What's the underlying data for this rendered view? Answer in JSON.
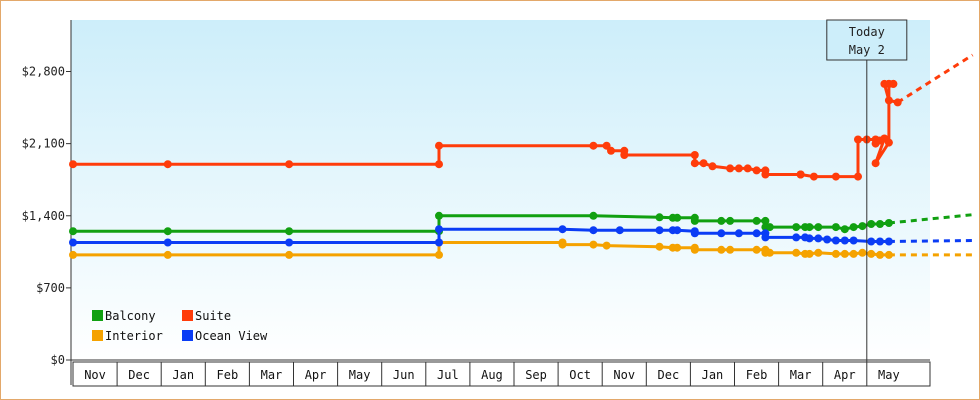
{
  "chart_data": {
    "type": "line",
    "title": "",
    "xlabel": "",
    "ylabel": "",
    "ylim": [
      0,
      3300
    ],
    "y_ticks": [
      {
        "value": 0,
        "label": "$0"
      },
      {
        "value": 700,
        "label": "$700"
      },
      {
        "value": 1400,
        "label": "$1,400"
      },
      {
        "value": 2100,
        "label": "$2,100"
      },
      {
        "value": 2800,
        "label": "$2,800"
      }
    ],
    "months": [
      "Nov",
      "Dec",
      "Jan",
      "Feb",
      "Mar",
      "Apr",
      "May",
      "Jun",
      "Jul",
      "Aug",
      "Sep",
      "Oct",
      "Nov",
      "Dec",
      "Jan",
      "Feb",
      "Mar",
      "Apr",
      "May"
    ],
    "today_label": [
      "Today",
      "May 2"
    ],
    "today_month_index": 18,
    "legend": {
      "position": "bottom-left"
    },
    "grid": false,
    "colors": {
      "Balcony": "#11a011",
      "Suite": "#ff3c0a",
      "Interior": "#f5a200",
      "Ocean View": "#0a3cf5",
      "plot_bg_top": "#cdeefa",
      "plot_bg_bottom": "#ffffff",
      "axis": "#333333",
      "frame": "#e3a86a"
    },
    "series": [
      {
        "name": "Balcony",
        "points": [
          [
            0,
            1250
          ],
          [
            2.15,
            1250
          ],
          [
            4.9,
            1250
          ],
          [
            8.3,
            1250
          ],
          [
            8.3,
            1400
          ],
          [
            11.8,
            1400
          ],
          [
            13.3,
            1385
          ],
          [
            13.6,
            1380
          ],
          [
            13.7,
            1380
          ],
          [
            14.1,
            1380
          ],
          [
            14.1,
            1350
          ],
          [
            14.7,
            1350
          ],
          [
            14.9,
            1350
          ],
          [
            15.5,
            1350
          ],
          [
            15.7,
            1350
          ],
          [
            15.7,
            1290
          ],
          [
            15.8,
            1290
          ],
          [
            16.4,
            1290
          ],
          [
            16.6,
            1290
          ],
          [
            16.7,
            1290
          ],
          [
            16.9,
            1290
          ],
          [
            17.3,
            1290
          ],
          [
            17.5,
            1270
          ],
          [
            17.7,
            1290
          ],
          [
            17.9,
            1300
          ],
          [
            18.1,
            1320
          ],
          [
            18.3,
            1320
          ],
          [
            18.5,
            1330
          ]
        ],
        "forecast": [
          [
            18.5,
            1330
          ],
          [
            20.4,
            1410
          ]
        ]
      },
      {
        "name": "Suite",
        "points": [
          [
            0,
            1900
          ],
          [
            2.15,
            1900
          ],
          [
            4.9,
            1900
          ],
          [
            8.3,
            1900
          ],
          [
            8.3,
            2080
          ],
          [
            11.8,
            2080
          ],
          [
            12.1,
            2080
          ],
          [
            12.2,
            2030
          ],
          [
            12.5,
            2030
          ],
          [
            12.5,
            1990
          ],
          [
            14.1,
            1990
          ],
          [
            14.1,
            1910
          ],
          [
            14.3,
            1910
          ],
          [
            14.5,
            1880
          ],
          [
            14.9,
            1860
          ],
          [
            15.1,
            1860
          ],
          [
            15.3,
            1860
          ],
          [
            15.5,
            1840
          ],
          [
            15.7,
            1840
          ],
          [
            15.7,
            1800
          ],
          [
            16.5,
            1800
          ],
          [
            16.5,
            1800
          ],
          [
            16.8,
            1780
          ],
          [
            17.3,
            1780
          ],
          [
            17.8,
            1780
          ],
          [
            17.8,
            2140
          ],
          [
            18.0,
            2140
          ],
          [
            18.2,
            2140
          ],
          [
            18.2,
            2100
          ],
          [
            18.3,
            2130
          ],
          [
            18.4,
            2150
          ],
          [
            18.2,
            1910
          ],
          [
            18.5,
            2110
          ],
          [
            18.5,
            2680
          ],
          [
            18.6,
            2680
          ],
          [
            18.6,
            2680
          ],
          [
            18.5,
            2680
          ],
          [
            18.4,
            2680
          ],
          [
            18.5,
            2520
          ],
          [
            18.7,
            2500
          ]
        ],
        "forecast": [
          [
            18.7,
            2500
          ],
          [
            20.4,
            2960
          ]
        ]
      },
      {
        "name": "Interior",
        "points": [
          [
            0,
            1020
          ],
          [
            2.15,
            1020
          ],
          [
            4.9,
            1020
          ],
          [
            8.3,
            1020
          ],
          [
            8.3,
            1140
          ],
          [
            11.1,
            1140
          ],
          [
            11.1,
            1120
          ],
          [
            11.8,
            1120
          ],
          [
            12.1,
            1110
          ],
          [
            13.3,
            1100
          ],
          [
            13.6,
            1090
          ],
          [
            13.7,
            1090
          ],
          [
            14.1,
            1090
          ],
          [
            14.1,
            1070
          ],
          [
            14.7,
            1070
          ],
          [
            14.9,
            1070
          ],
          [
            15.5,
            1070
          ],
          [
            15.7,
            1070
          ],
          [
            15.7,
            1040
          ],
          [
            15.8,
            1040
          ],
          [
            16.4,
            1040
          ],
          [
            16.6,
            1030
          ],
          [
            16.7,
            1030
          ],
          [
            16.9,
            1040
          ],
          [
            17.3,
            1030
          ],
          [
            17.5,
            1030
          ],
          [
            17.7,
            1030
          ],
          [
            17.9,
            1040
          ],
          [
            18.1,
            1030
          ],
          [
            18.3,
            1020
          ],
          [
            18.5,
            1020
          ]
        ],
        "forecast": [
          [
            18.5,
            1020
          ],
          [
            20.4,
            1020
          ]
        ]
      },
      {
        "name": "Ocean View",
        "points": [
          [
            0,
            1140
          ],
          [
            2.15,
            1140
          ],
          [
            4.9,
            1140
          ],
          [
            8.3,
            1140
          ],
          [
            8.3,
            1270
          ],
          [
            11.1,
            1270
          ],
          [
            11.8,
            1260
          ],
          [
            12.4,
            1260
          ],
          [
            13.3,
            1260
          ],
          [
            13.6,
            1260
          ],
          [
            13.7,
            1260
          ],
          [
            14.1,
            1250
          ],
          [
            14.1,
            1230
          ],
          [
            14.7,
            1230
          ],
          [
            15.1,
            1230
          ],
          [
            15.5,
            1230
          ],
          [
            15.7,
            1230
          ],
          [
            15.7,
            1190
          ],
          [
            16.4,
            1190
          ],
          [
            16.6,
            1190
          ],
          [
            16.7,
            1180
          ],
          [
            16.9,
            1180
          ],
          [
            17.1,
            1170
          ],
          [
            17.3,
            1160
          ],
          [
            17.5,
            1160
          ],
          [
            17.7,
            1160
          ],
          [
            18.1,
            1150
          ],
          [
            18.3,
            1150
          ],
          [
            18.5,
            1150
          ]
        ],
        "forecast": [
          [
            18.5,
            1150
          ],
          [
            20.4,
            1160
          ]
        ]
      }
    ]
  }
}
